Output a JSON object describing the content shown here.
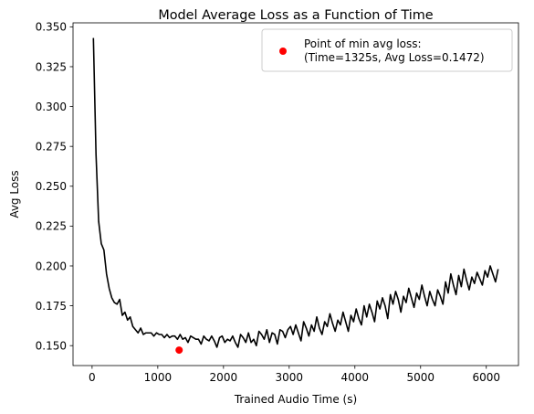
{
  "chart_data": {
    "type": "line",
    "title": "Model Average Loss as a Function of Time",
    "xlabel": "Trained Audio Time (s)",
    "ylabel": "Avg Loss",
    "xlim": [
      -290,
      6490
    ],
    "ylim": [
      0.1375,
      0.3525
    ],
    "xticks": [
      0,
      1000,
      2000,
      3000,
      4000,
      5000,
      6000
    ],
    "xtick_labels": [
      "0",
      "1000",
      "2000",
      "3000",
      "4000",
      "5000",
      "6000"
    ],
    "yticks": [
      0.15,
      0.175,
      0.2,
      0.225,
      0.25,
      0.275,
      0.3,
      0.325,
      0.35
    ],
    "ytick_labels": [
      "0.150",
      "0.175",
      "0.200",
      "0.225",
      "0.250",
      "0.275",
      "0.300",
      "0.325",
      "0.350"
    ],
    "grid": false,
    "legend_position": "top-right",
    "series": [
      {
        "color": "#000000",
        "x": [
          20,
          60,
          100,
          140,
          180,
          220,
          260,
          300,
          340,
          380,
          420,
          460,
          500,
          540,
          580,
          620,
          660,
          700,
          740,
          780,
          820,
          860,
          900,
          940,
          980,
          1020,
          1060,
          1100,
          1140,
          1180,
          1220,
          1260,
          1300,
          1340,
          1380,
          1420,
          1460,
          1500,
          1540,
          1580,
          1620,
          1660,
          1700,
          1740,
          1780,
          1820,
          1860,
          1900,
          1940,
          1980,
          2020,
          2060,
          2100,
          2140,
          2180,
          2220,
          2260,
          2300,
          2340,
          2380,
          2420,
          2460,
          2500,
          2540,
          2580,
          2620,
          2660,
          2700,
          2740,
          2780,
          2820,
          2860,
          2900,
          2940,
          2980,
          3020,
          3060,
          3100,
          3140,
          3180,
          3220,
          3260,
          3300,
          3340,
          3380,
          3420,
          3460,
          3500,
          3540,
          3580,
          3620,
          3660,
          3700,
          3740,
          3780,
          3820,
          3860,
          3900,
          3940,
          3980,
          4020,
          4060,
          4100,
          4140,
          4180,
          4220,
          4260,
          4300,
          4340,
          4380,
          4420,
          4460,
          4500,
          4540,
          4580,
          4620,
          4660,
          4700,
          4740,
          4780,
          4820,
          4860,
          4900,
          4940,
          4980,
          5020,
          5060,
          5100,
          5140,
          5180,
          5220,
          5260,
          5300,
          5340,
          5380,
          5420,
          5460,
          5500,
          5540,
          5580,
          5620,
          5660,
          5700,
          5740,
          5780,
          5820,
          5860,
          5900,
          5940,
          5980,
          6020,
          6060,
          6100,
          6140,
          6180
        ],
        "values": [
          0.343,
          0.27,
          0.228,
          0.214,
          0.21,
          0.195,
          0.186,
          0.18,
          0.177,
          0.176,
          0.179,
          0.169,
          0.171,
          0.166,
          0.168,
          0.162,
          0.16,
          0.158,
          0.161,
          0.157,
          0.158,
          0.158,
          0.158,
          0.156,
          0.158,
          0.157,
          0.157,
          0.155,
          0.157,
          0.155,
          0.156,
          0.156,
          0.154,
          0.157,
          0.154,
          0.155,
          0.152,
          0.156,
          0.155,
          0.154,
          0.154,
          0.151,
          0.156,
          0.154,
          0.153,
          0.156,
          0.153,
          0.149,
          0.155,
          0.156,
          0.152,
          0.154,
          0.153,
          0.156,
          0.152,
          0.149,
          0.157,
          0.155,
          0.152,
          0.158,
          0.152,
          0.154,
          0.15,
          0.159,
          0.157,
          0.154,
          0.16,
          0.152,
          0.158,
          0.157,
          0.151,
          0.16,
          0.159,
          0.155,
          0.16,
          0.162,
          0.157,
          0.163,
          0.158,
          0.153,
          0.165,
          0.161,
          0.156,
          0.163,
          0.159,
          0.168,
          0.161,
          0.157,
          0.165,
          0.162,
          0.17,
          0.164,
          0.159,
          0.166,
          0.163,
          0.171,
          0.165,
          0.159,
          0.169,
          0.165,
          0.173,
          0.167,
          0.163,
          0.175,
          0.168,
          0.176,
          0.171,
          0.165,
          0.178,
          0.173,
          0.18,
          0.175,
          0.167,
          0.182,
          0.176,
          0.184,
          0.179,
          0.171,
          0.181,
          0.177,
          0.186,
          0.18,
          0.174,
          0.183,
          0.179,
          0.188,
          0.181,
          0.175,
          0.184,
          0.179,
          0.175,
          0.185,
          0.181,
          0.176,
          0.19,
          0.183,
          0.195,
          0.188,
          0.182,
          0.194,
          0.187,
          0.198,
          0.191,
          0.185,
          0.193,
          0.189,
          0.196,
          0.192,
          0.188,
          0.197,
          0.193,
          0.2,
          0.195,
          0.19,
          0.198
        ]
      },
      {
        "name": "Point of min avg loss:\n(Time=1325s, Avg Loss=0.1472)",
        "type": "scatter",
        "color": "#ff0000",
        "x": [
          1325
        ],
        "values": [
          0.1472
        ]
      }
    ]
  }
}
